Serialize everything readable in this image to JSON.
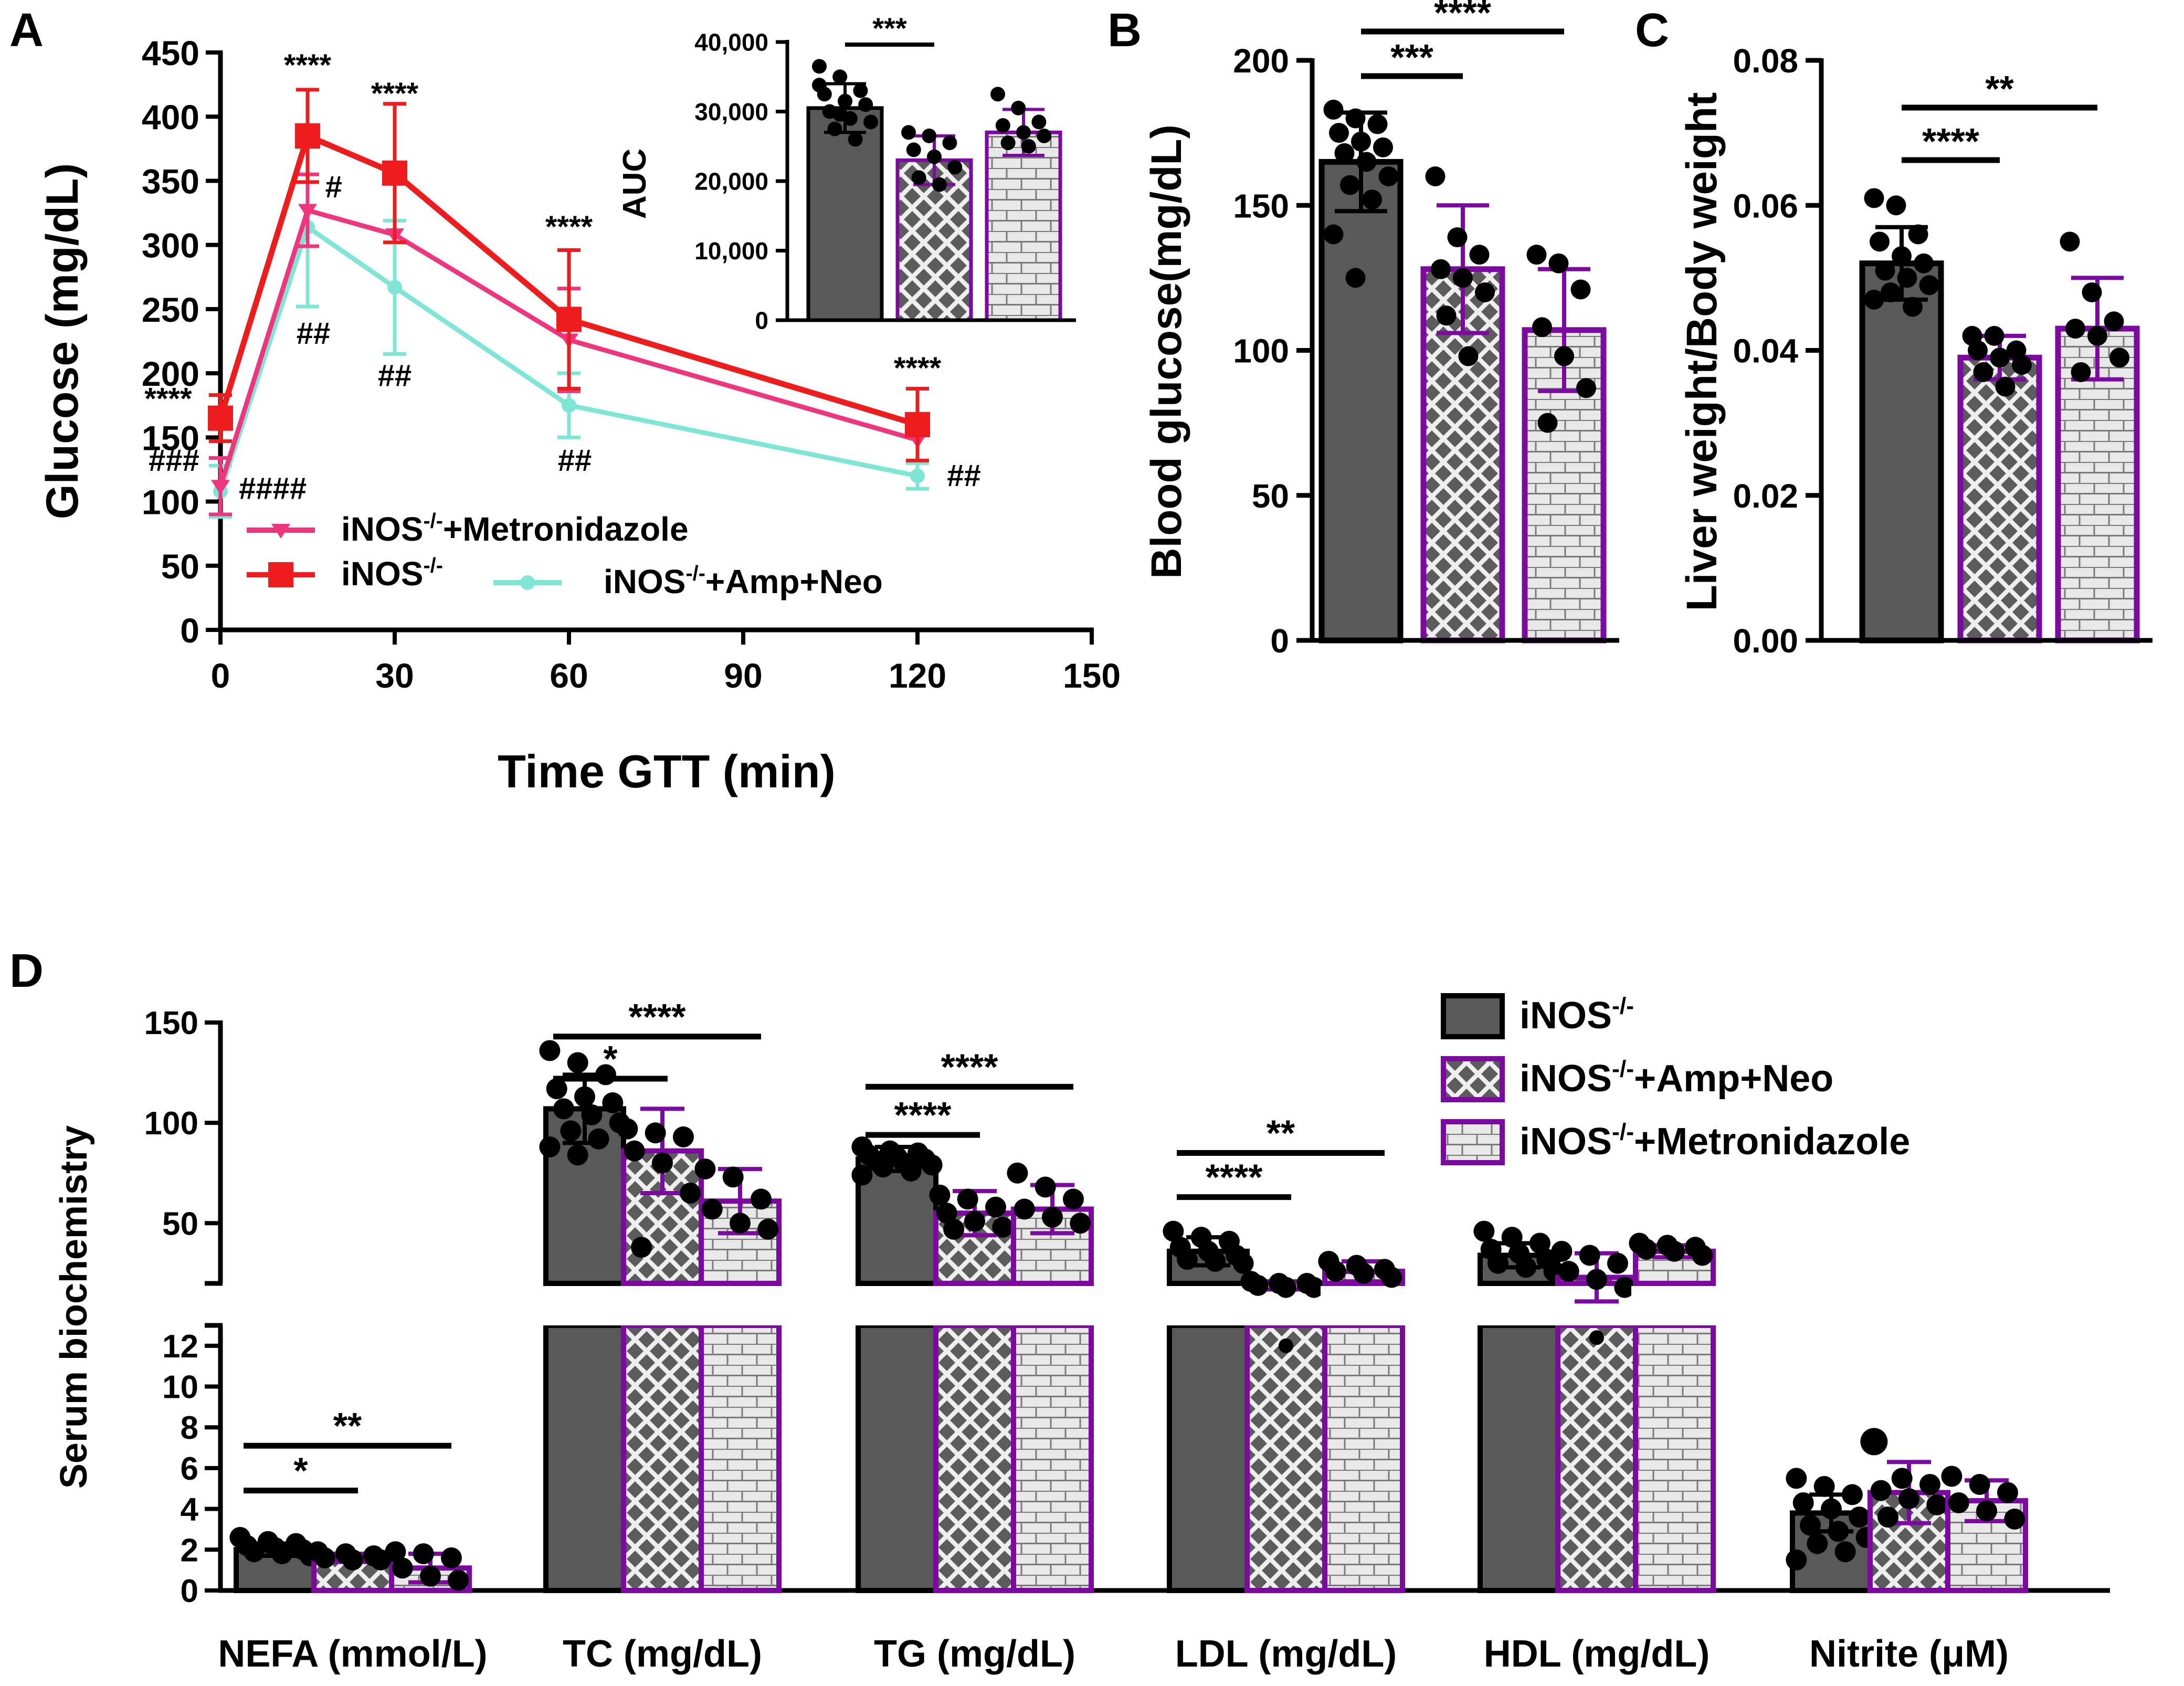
{
  "colors": {
    "wt": "#595959",
    "ampneo": "#7d0aa0",
    "metro": "#7d0aa0",
    "curve_metro": "#f0357f",
    "curve_wt": "#ee1c1c",
    "curve_ampneo": "#7fe6d6"
  },
  "chart_data": [
    {
      "panel": "A",
      "type": "line",
      "panel_label": "A",
      "xlabel": "Time GTT (min)",
      "ylabel": "Glucose (mg/dL)",
      "xlim": [
        0,
        150
      ],
      "ylim": [
        0,
        450
      ],
      "xticks": [
        "0",
        "30",
        "60",
        "90",
        "120",
        "150"
      ],
      "yticks": [
        "0",
        "50",
        "100",
        "150",
        "200",
        "250",
        "300",
        "350",
        "400",
        "450"
      ],
      "x": [
        0,
        15,
        30,
        60,
        120
      ],
      "series": [
        {
          "name": "iNOS-/-",
          "legend_base": "iNOS",
          "legend_sup": "-/-",
          "legend_suffix": "",
          "values": [
            165,
            385,
            356,
            242,
            160
          ],
          "sd": [
            18,
            36,
            54,
            54,
            28
          ]
        },
        {
          "name": "iNOS-/-+Metronidazole",
          "legend_base": "iNOS",
          "legend_sup": "-/-",
          "legend_suffix": "+Metronidazole",
          "values": [
            112,
            327,
            308,
            226,
            148
          ],
          "sd": [
            22,
            28,
            0,
            40,
            0
          ]
        },
        {
          "name": "iNOS-/-+Amp+Neo",
          "legend_base": "iNOS",
          "legend_sup": "-/-",
          "legend_suffix": "+Amp+Neo",
          "values": [
            108,
            314,
            267,
            175,
            120
          ],
          "sd": [
            20,
            62,
            52,
            25,
            10
          ]
        }
      ],
      "annotations": [
        {
          "text": "****",
          "x": 15,
          "y": 432
        },
        {
          "text": "****",
          "x": 30,
          "y": 410
        },
        {
          "text": "****",
          "x": 60,
          "y": 306
        },
        {
          "text": "****",
          "x": 120,
          "y": 196
        },
        {
          "text": "****",
          "x": -9,
          "y": 172
        },
        {
          "text": "###",
          "x": -8,
          "y": 124
        },
        {
          "text": "####",
          "x": 9,
          "y": 102
        },
        {
          "text": "#",
          "x": 19.5,
          "y": 337
        },
        {
          "text": "##",
          "x": 16,
          "y": 223
        },
        {
          "text": "##",
          "x": 30,
          "y": 190
        },
        {
          "text": "##",
          "x": 61,
          "y": 124
        },
        {
          "text": "##",
          "x": 128,
          "y": 112
        }
      ]
    },
    {
      "panel": "A-inset",
      "type": "bar",
      "ylabel": "AUC",
      "ylim": [
        0,
        40000
      ],
      "yticks": [
        "0",
        "10,000",
        "20,000",
        "30,000",
        "40,000"
      ],
      "categories": [
        "iNOS-/-",
        "iNOS-/-+Amp+Neo",
        "iNOS-/-+Metronidazole"
      ],
      "values": [
        30500,
        23000,
        27000
      ],
      "sd": [
        3500,
        3500,
        3300
      ],
      "points": [
        [
          36500,
          35000,
          33000,
          32500,
          31500,
          31000,
          30000,
          29000,
          28500,
          27500,
          26000,
          33800,
          29600
        ],
        [
          27000,
          26500,
          25500,
          24500,
          23500,
          22000,
          20500,
          19500
        ],
        [
          32500,
          30500,
          28500,
          28000,
          27000,
          26500,
          25500,
          25000
        ]
      ],
      "significance": [
        {
          "from": 0,
          "to": 1,
          "label": "***"
        }
      ]
    },
    {
      "panel": "B",
      "type": "bar",
      "panel_label": "B",
      "ylabel": "Blood glucose(mg/dL)",
      "ylim": [
        0,
        200
      ],
      "yticks": [
        "0",
        "50",
        "100",
        "150",
        "200"
      ],
      "categories": [
        "iNOS-/-",
        "iNOS-/-+Amp+Neo",
        "iNOS-/-+Metronidazole"
      ],
      "values": [
        165,
        128,
        107
      ],
      "sd": [
        17,
        22,
        21
      ],
      "points": [
        [
          183,
          180,
          178,
          175,
          172,
          170,
          168,
          165,
          160,
          157,
          152,
          140,
          125
        ],
        [
          160,
          139,
          133,
          128,
          125,
          120,
          112,
          98
        ],
        [
          133,
          130,
          121,
          108,
          98,
          87,
          75
        ]
      ],
      "significance": [
        {
          "from": 0,
          "to": 1,
          "label": "***"
        },
        {
          "from": 0,
          "to": 2,
          "label": "****"
        }
      ]
    },
    {
      "panel": "C",
      "type": "bar",
      "panel_label": "C",
      "ylabel": "Liver weight/Body weight",
      "ylim": [
        0,
        0.08
      ],
      "yticks": [
        "0.00",
        "0.02",
        "0.04",
        "0.06",
        "0.08"
      ],
      "categories": [
        "iNOS-/-",
        "iNOS-/-+Amp+Neo",
        "iNOS-/-+Metronidazole"
      ],
      "values": [
        0.052,
        0.039,
        0.043
      ],
      "sd": [
        0.005,
        0.003,
        0.007
      ],
      "points": [
        [
          0.061,
          0.06,
          0.056,
          0.055,
          0.053,
          0.052,
          0.051,
          0.05,
          0.049,
          0.048,
          0.046,
          0.047
        ],
        [
          0.042,
          0.042,
          0.04,
          0.04,
          0.039,
          0.038,
          0.037,
          0.035
        ],
        [
          0.055,
          0.048,
          0.044,
          0.043,
          0.042,
          0.039,
          0.037
        ]
      ],
      "significance": [
        {
          "from": 0,
          "to": 1,
          "label": "****"
        },
        {
          "from": 0,
          "to": 2,
          "label": "**"
        }
      ]
    },
    {
      "panel": "D",
      "type": "bar",
      "panel_label": "D",
      "ylabel": "Serum biochemistry",
      "upper_ylim": [
        20,
        150
      ],
      "upper_yticks": [
        "50",
        "100",
        "150"
      ],
      "lower_ylim": [
        0,
        13
      ],
      "lower_yticks": [
        "0",
        "2",
        "4",
        "6",
        "8",
        "10",
        "12"
      ],
      "categories": [
        "NEFA (mmol/L)",
        "TC (mg/dL)",
        "TG (mg/dL)",
        "LDL (mg/dL)",
        "HDL (mg/dL)",
        "Nitrite (μM)"
      ],
      "series": [
        {
          "name": "iNOS-/-",
          "legend_base": "iNOS",
          "legend_sup": "-/-",
          "legend_suffix": "",
          "pattern": "solid",
          "values": [
            2.0,
            107,
            82,
            36,
            34,
            3.8
          ],
          "sd": [
            0.3,
            17,
            6,
            7,
            6,
            0.9
          ],
          "points": [
            [
              2.6,
              2.4,
              2.3,
              2.2,
              2.1,
              2.0,
              1.9,
              1.8,
              1.7
            ],
            [
              136,
              130,
              124,
              117,
              113,
              110,
              107,
              104,
              100,
              96,
              92,
              88,
              84
            ],
            [
              88,
              86,
              85,
              84,
              83,
              82,
              81,
              80,
              79,
              78,
              76,
              74
            ],
            [
              46,
              43,
              41,
              38,
              36,
              34,
              32,
              31,
              30
            ],
            [
              46,
              43,
              40,
              37,
              35,
              32,
              30,
              28,
              26
            ],
            [
              5.5,
              5.1,
              4.7,
              4.3,
              4.0,
              3.6,
              3.2,
              2.9,
              2.6,
              2.3,
              1.9,
              1.5
            ]
          ]
        },
        {
          "name": "iNOS-/-+Amp+Neo",
          "legend_base": "iNOS",
          "legend_sup": "-/-",
          "legend_suffix": "+Amp+Neo",
          "pattern": "checker",
          "values": [
            1.6,
            86,
            55,
            19,
            23,
            4.8
          ],
          "sd": [
            0.2,
            21,
            11,
            2,
            12,
            1.5
          ],
          "points": [
            [
              1.9,
              1.8,
              1.7,
              1.6,
              1.5,
              1.5
            ],
            [
              97,
              95,
              93,
              86,
              80,
              65,
              38
            ],
            [
              64,
              62,
              58,
              55,
              51,
              48,
              47
            ],
            [
              21,
              20,
              20,
              19,
              18,
              18
            ],
            [
              36,
              34,
              30,
              26,
              22,
              18
            ],
            [
              7.3,
              5.5,
              5.2,
              4.9,
              4.5,
              4.2,
              3.6
            ]
          ]
        },
        {
          "name": "iNOS-/-+Metronidazole",
          "legend_base": "iNOS",
          "legend_sup": "-/-",
          "legend_suffix": "+Metronidazole",
          "pattern": "brick",
          "values": [
            1.1,
            61,
            57,
            26,
            36,
            4.4
          ],
          "sd": [
            0.7,
            16,
            12,
            5,
            3,
            1.0
          ],
          "points": [
            [
              1.9,
              1.8,
              1.6,
              1.1,
              0.7,
              0.5
            ],
            [
              77,
              73,
              62,
              57,
              50,
              47
            ],
            [
              75,
              68,
              62,
              57,
              53,
              50
            ],
            [
              31,
              29,
              27,
              26,
              25,
              23
            ],
            [
              40,
              39,
              38,
              37,
              36,
              34
            ],
            [
              5.6,
              5.2,
              4.8,
              4.3,
              3.9,
              3.5
            ]
          ]
        }
      ],
      "lower_groups": [
        0,
        5
      ],
      "dots_below_break": [
        {
          "group": 3,
          "series": 1,
          "value": 12.0
        },
        {
          "group": 4,
          "series": 1,
          "value": 12.4
        }
      ],
      "significance": [
        {
          "group": 0,
          "from": 0,
          "to": 1,
          "label": "*",
          "axis": "lower"
        },
        {
          "group": 0,
          "from": 0,
          "to": 2,
          "label": "**",
          "axis": "lower"
        },
        {
          "group": 1,
          "from": 0,
          "to": 1,
          "label": "*",
          "axis": "upper"
        },
        {
          "group": 1,
          "from": 0,
          "to": 2,
          "label": "****",
          "axis": "upper"
        },
        {
          "group": 2,
          "from": 0,
          "to": 1,
          "label": "****",
          "axis": "upper"
        },
        {
          "group": 2,
          "from": 0,
          "to": 2,
          "label": "****",
          "axis": "upper"
        },
        {
          "group": 3,
          "from": 0,
          "to": 1,
          "label": "****",
          "axis": "upper"
        },
        {
          "group": 3,
          "from": 0,
          "to": 2,
          "label": "**",
          "axis": "upper"
        }
      ]
    }
  ]
}
